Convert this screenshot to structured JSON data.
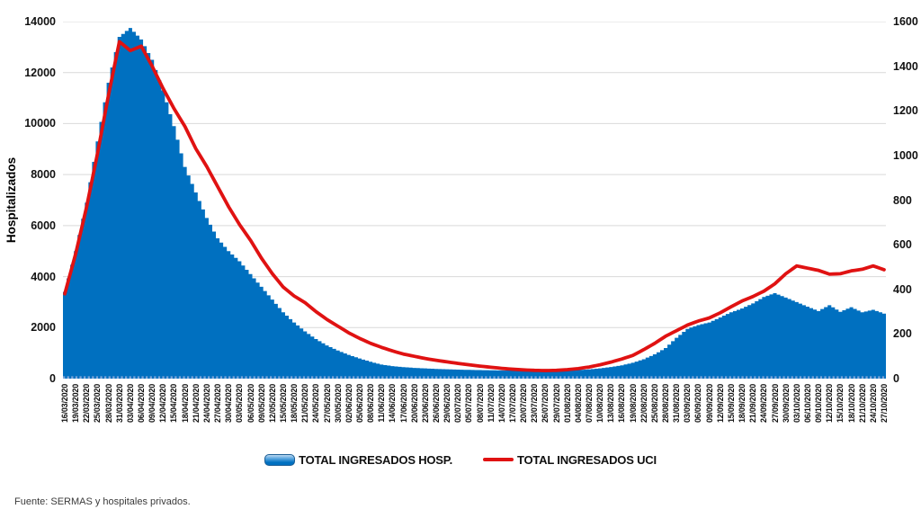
{
  "chart_data": {
    "type": "bar",
    "subtype": "combo-bar-line",
    "title": "",
    "category_step_days": 3,
    "grid": true,
    "legend_position": "bottom",
    "left_axis": {
      "title": "Hospitalizados",
      "min": 0,
      "max": 14000,
      "step": 2000
    },
    "right_axis": {
      "min": 0,
      "max": 1600,
      "step": 200
    },
    "categories": [
      "16/03/2020",
      "19/03/2020",
      "22/03/2020",
      "25/03/2020",
      "28/03/2020",
      "31/03/2020",
      "03/04/2020",
      "06/04/2020",
      "09/04/2020",
      "12/04/2020",
      "15/04/2020",
      "18/04/2020",
      "21/04/2020",
      "24/04/2020",
      "27/04/2020",
      "30/04/2020",
      "03/05/2020",
      "06/05/2020",
      "09/05/2020",
      "12/05/2020",
      "15/05/2020",
      "18/05/2020",
      "21/05/2020",
      "24/05/2020",
      "27/05/2020",
      "30/05/2020",
      "02/06/2020",
      "05/06/2020",
      "08/06/2020",
      "11/06/2020",
      "14/06/2020",
      "17/06/2020",
      "20/06/2020",
      "23/06/2020",
      "26/06/2020",
      "29/06/2020",
      "02/07/2020",
      "05/07/2020",
      "08/07/2020",
      "11/07/2020",
      "14/07/2020",
      "17/07/2020",
      "20/07/2020",
      "23/07/2020",
      "26/07/2020",
      "29/07/2020",
      "01/08/2020",
      "04/08/2020",
      "07/08/2020",
      "10/08/2020",
      "13/08/2020",
      "16/08/2020",
      "19/08/2020",
      "22/08/2020",
      "25/08/2020",
      "28/08/2020",
      "31/08/2020",
      "03/09/2020",
      "06/09/2020",
      "09/09/2020",
      "12/09/2020",
      "15/09/2020",
      "18/09/2020",
      "21/09/2020",
      "24/09/2020",
      "27/09/2020",
      "30/09/2020",
      "03/10/2020",
      "06/10/2020",
      "09/10/2020",
      "12/10/2020",
      "15/10/2020",
      "18/10/2020",
      "21/10/2020",
      "24/10/2020",
      "27/10/2020"
    ],
    "series": [
      {
        "name": "TOTAL INGRESADOS HOSP.",
        "type": "bar",
        "axis": "left",
        "color": "#0070c0",
        "values": [
          3400,
          5000,
          6900,
          9300,
          11600,
          13400,
          13750,
          13300,
          12500,
          11300,
          9900,
          8300,
          7300,
          6300,
          5500,
          5000,
          4600,
          4100,
          3600,
          3100,
          2600,
          2200,
          1850,
          1550,
          1300,
          1100,
          930,
          790,
          660,
          550,
          490,
          450,
          420,
          400,
          380,
          365,
          352,
          342,
          334,
          327,
          321,
          316,
          311,
          307,
          305,
          308,
          318,
          335,
          360,
          400,
          455,
          520,
          620,
          760,
          950,
          1200,
          1600,
          1950,
          2100,
          2200,
          2400,
          2600,
          2750,
          2950,
          3200,
          3350,
          3180,
          3000,
          2820,
          2650,
          2880,
          2620,
          2800,
          2600,
          2700,
          2550
        ]
      },
      {
        "name": "TOTAL INGRESADOS UCI",
        "type": "line",
        "axis": "right",
        "color": "#e01212",
        "values": [
          380,
          560,
          770,
          1010,
          1270,
          1510,
          1470,
          1490,
          1400,
          1300,
          1210,
          1130,
          1030,
          950,
          860,
          770,
          690,
          620,
          540,
          470,
          410,
          370,
          340,
          300,
          265,
          235,
          205,
          180,
          158,
          140,
          124,
          110,
          100,
          90,
          82,
          75,
          68,
          62,
          56,
          51,
          46,
          42,
          39,
          37,
          36,
          37,
          40,
          45,
          52,
          62,
          74,
          88,
          104,
          130,
          158,
          190,
          215,
          240,
          258,
          272,
          295,
          322,
          348,
          368,
          392,
          425,
          470,
          505,
          495,
          485,
          468,
          470,
          483,
          490,
          505,
          488
        ]
      }
    ]
  },
  "colors": {
    "grid": "#d9d9d9",
    "baseline_dash": "#7ea6d9",
    "bar": "#0070c0",
    "line": "#e01212",
    "axis_text": "#111111",
    "source_text": "#3a3a3a"
  },
  "footer": {
    "source": "Fuente: SERMAS y hospitales privados."
  }
}
